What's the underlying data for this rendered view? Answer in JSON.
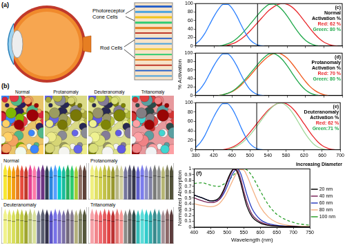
{
  "panels": {
    "a": {
      "label": "(a)",
      "cone_label": [
        "Photoreceptor",
        "Cone Cells"
      ],
      "rod_label": "Rod Cells"
    },
    "b": {
      "label": "(b)",
      "image_labels": [
        "Normal",
        "Protanomaly",
        "Deuteranomaly",
        "Tritanomaly"
      ],
      "crayon_labels": [
        "Normal",
        "Protanomaly",
        "Deuteranomaly",
        "Tritanomaly"
      ]
    }
  },
  "chart_data": [
    {
      "type": "line",
      "panel": "(c)",
      "title": "Normal",
      "annotations": [
        {
          "text": "Activation %"
        },
        {
          "text": "Red: 62 %",
          "color": "#e8262a"
        },
        {
          "text": "Green: 80 %",
          "color": "#1fa84a"
        }
      ],
      "xlim": [
        380,
        700
      ],
      "xticks": [
        380,
        420,
        460,
        500,
        540,
        580,
        620,
        660,
        700
      ],
      "ylim": [
        0,
        100
      ],
      "yticks": [
        0,
        20,
        40,
        60,
        80,
        100
      ],
      "tick_labels": "y",
      "vline": 515,
      "series": [
        {
          "color": "#2a7fff",
          "x": [
            380,
            390,
            400,
            410,
            420,
            430,
            440,
            450,
            460,
            470,
            480,
            490,
            500,
            510,
            520,
            530
          ],
          "values": [
            5,
            15,
            30,
            50,
            70,
            87,
            98,
            98,
            88,
            70,
            48,
            28,
            13,
            5,
            1,
            0
          ]
        },
        {
          "color": "#1fa84a",
          "x": [
            430,
            440,
            450,
            460,
            470,
            480,
            490,
            500,
            510,
            520,
            530,
            540,
            550,
            560,
            570,
            580,
            590,
            600,
            610,
            620,
            630,
            640,
            650
          ],
          "values": [
            0,
            2,
            5,
            10,
            18,
            28,
            40,
            53,
            66,
            79,
            90,
            98,
            99,
            94,
            84,
            70,
            54,
            38,
            24,
            13,
            6,
            2,
            0
          ]
        },
        {
          "color": "#e8262a",
          "x": [
            440,
            450,
            460,
            470,
            480,
            490,
            500,
            510,
            520,
            530,
            540,
            550,
            560,
            570,
            580,
            590,
            600,
            610,
            620,
            630,
            640,
            650,
            660,
            670,
            680,
            690
          ],
          "values": [
            0,
            2,
            5,
            10,
            17,
            26,
            37,
            49,
            61,
            73,
            84,
            92,
            98,
            100,
            98,
            92,
            82,
            69,
            55,
            41,
            28,
            17,
            9,
            4,
            1,
            0
          ]
        }
      ]
    },
    {
      "type": "line",
      "panel": "(d)",
      "title": "Protanomaly",
      "ylabel": "% Activation",
      "annotations": [
        {
          "text": "Activation %"
        },
        {
          "text": "Red: 70 %",
          "color": "#e8262a"
        },
        {
          "text": "Green: 80 %",
          "color": "#1fa84a"
        }
      ],
      "xlim": [
        380,
        700
      ],
      "xticks": [
        380,
        420,
        460,
        500,
        540,
        580,
        620,
        660,
        700
      ],
      "ylim": [
        0,
        100
      ],
      "yticks": [
        0,
        20,
        40,
        60,
        80,
        100
      ],
      "tick_labels": "y",
      "vline": 515,
      "series": [
        {
          "color": "#2a7fff",
          "x": [
            380,
            390,
            400,
            410,
            420,
            430,
            440,
            450,
            460,
            470,
            480,
            490,
            500,
            510,
            520,
            530
          ],
          "values": [
            5,
            15,
            30,
            50,
            70,
            87,
            98,
            98,
            88,
            70,
            48,
            28,
            13,
            5,
            1,
            0
          ]
        },
        {
          "color": "#1fa84a",
          "x": [
            430,
            440,
            450,
            460,
            470,
            480,
            490,
            500,
            510,
            520,
            530,
            540,
            550,
            560,
            570,
            580,
            590,
            600,
            610,
            620,
            630,
            640,
            650
          ],
          "values": [
            0,
            2,
            5,
            10,
            18,
            28,
            40,
            53,
            66,
            79,
            90,
            98,
            99,
            94,
            84,
            70,
            54,
            38,
            24,
            13,
            6,
            2,
            0
          ]
        },
        {
          "color": "#f05a1e",
          "x": [
            430,
            440,
            450,
            460,
            470,
            480,
            490,
            500,
            510,
            520,
            530,
            540,
            550,
            560,
            570,
            580,
            590,
            600,
            610,
            620,
            630,
            640,
            650,
            660,
            670
          ],
          "values": [
            0,
            2,
            5,
            9,
            16,
            25,
            36,
            48,
            61,
            73,
            84,
            93,
            99,
            100,
            96,
            88,
            76,
            62,
            47,
            33,
            21,
            12,
            6,
            2,
            0
          ]
        }
      ]
    },
    {
      "type": "line",
      "panel": "(e)",
      "title": "Deuteranomaly",
      "annotations": [
        {
          "text": "Activation %"
        },
        {
          "text": "Red: 62 %",
          "color": "#e8262a"
        },
        {
          "text": "Green:71 %",
          "color": "#1fa84a"
        }
      ],
      "xlim": [
        380,
        700
      ],
      "xticks": [
        380,
        420,
        460,
        500,
        540,
        580,
        620,
        660,
        700
      ],
      "ylim": [
        0,
        100
      ],
      "yticks": [
        0,
        20,
        40,
        60,
        80,
        100
      ],
      "vline": 515,
      "series": [
        {
          "color": "#2a7fff",
          "x": [
            380,
            390,
            400,
            410,
            420,
            430,
            440,
            450,
            460,
            470,
            480,
            490,
            500,
            510,
            520,
            530
          ],
          "values": [
            5,
            15,
            30,
            50,
            70,
            87,
            98,
            98,
            88,
            70,
            48,
            28,
            13,
            5,
            1,
            0
          ]
        },
        {
          "color": "#9fd89a",
          "x": [
            450,
            460,
            470,
            480,
            490,
            500,
            510,
            520,
            530,
            540,
            550,
            560,
            570,
            580,
            590,
            600,
            610,
            620,
            630,
            640,
            650,
            660,
            670
          ],
          "values": [
            0,
            3,
            7,
            13,
            21,
            31,
            43,
            56,
            69,
            81,
            91,
            98,
            99,
            94,
            84,
            70,
            54,
            38,
            24,
            13,
            6,
            2,
            0
          ]
        },
        {
          "color": "#e8262a",
          "x": [
            440,
            450,
            460,
            470,
            480,
            490,
            500,
            510,
            520,
            530,
            540,
            550,
            560,
            570,
            580,
            590,
            600,
            610,
            620,
            630,
            640,
            650,
            660,
            670,
            680,
            690
          ],
          "values": [
            0,
            2,
            5,
            10,
            17,
            26,
            37,
            49,
            61,
            73,
            84,
            92,
            98,
            100,
            98,
            92,
            82,
            69,
            55,
            41,
            28,
            17,
            9,
            4,
            1,
            0
          ]
        }
      ]
    },
    {
      "type": "line",
      "panel": "(f)",
      "annotation": "Increasing Diameter",
      "xlabel": "Wavelength (nm)",
      "ylabel": "Normalized Absorption",
      "legend": "right",
      "xlim": [
        400,
        750
      ],
      "xticks": [
        400,
        450,
        500,
        550,
        600,
        650,
        700,
        750
      ],
      "ylim": [
        0,
        1
      ],
      "yticks": [
        0,
        0.1,
        0.2,
        0.3,
        0.4,
        0.5,
        0.6,
        0.7,
        0.8,
        0.9,
        1
      ],
      "x": [
        400,
        425,
        450,
        475,
        490,
        500,
        510,
        520,
        530,
        540,
        550,
        560,
        575,
        600,
        625,
        650,
        700,
        750
      ],
      "series": [
        {
          "name": "20 nm",
          "color": "#000000",
          "values": [
            0.55,
            0.5,
            0.45,
            0.5,
            0.65,
            0.8,
            0.93,
            1,
            0.95,
            0.78,
            0.55,
            0.35,
            0.18,
            0.07,
            0.03,
            0.02,
            0.01,
            0
          ]
        },
        {
          "name": "40 nm",
          "color": "#7a2458",
          "values": [
            0.5,
            0.45,
            0.42,
            0.47,
            0.62,
            0.77,
            0.9,
            0.99,
            0.98,
            0.84,
            0.62,
            0.42,
            0.22,
            0.09,
            0.04,
            0.02,
            0.01,
            0
          ]
        },
        {
          "name": "60 nm",
          "color": "#2b3fbf",
          "values": [
            0.55,
            0.5,
            0.45,
            0.47,
            0.58,
            0.7,
            0.84,
            0.95,
            1,
            0.93,
            0.75,
            0.55,
            0.32,
            0.13,
            0.06,
            0.03,
            0.01,
            0
          ]
        },
        {
          "name": "80 nm",
          "color": "#f4b183",
          "values": [
            0.4,
            0.37,
            0.35,
            0.4,
            0.5,
            0.6,
            0.72,
            0.84,
            0.94,
            0.99,
            0.98,
            0.88,
            0.67,
            0.35,
            0.17,
            0.08,
            0.02,
            0.01
          ]
        },
        {
          "name": "100 nm",
          "color": "#2ca02c",
          "line_style": "dashed",
          "values": [
            0.75,
            0.76,
            0.72,
            0.7,
            0.74,
            0.78,
            0.84,
            0.9,
            0.95,
            0.98,
            1,
            0.98,
            0.88,
            0.62,
            0.38,
            0.22,
            0.08,
            0.03
          ]
        }
      ]
    }
  ]
}
